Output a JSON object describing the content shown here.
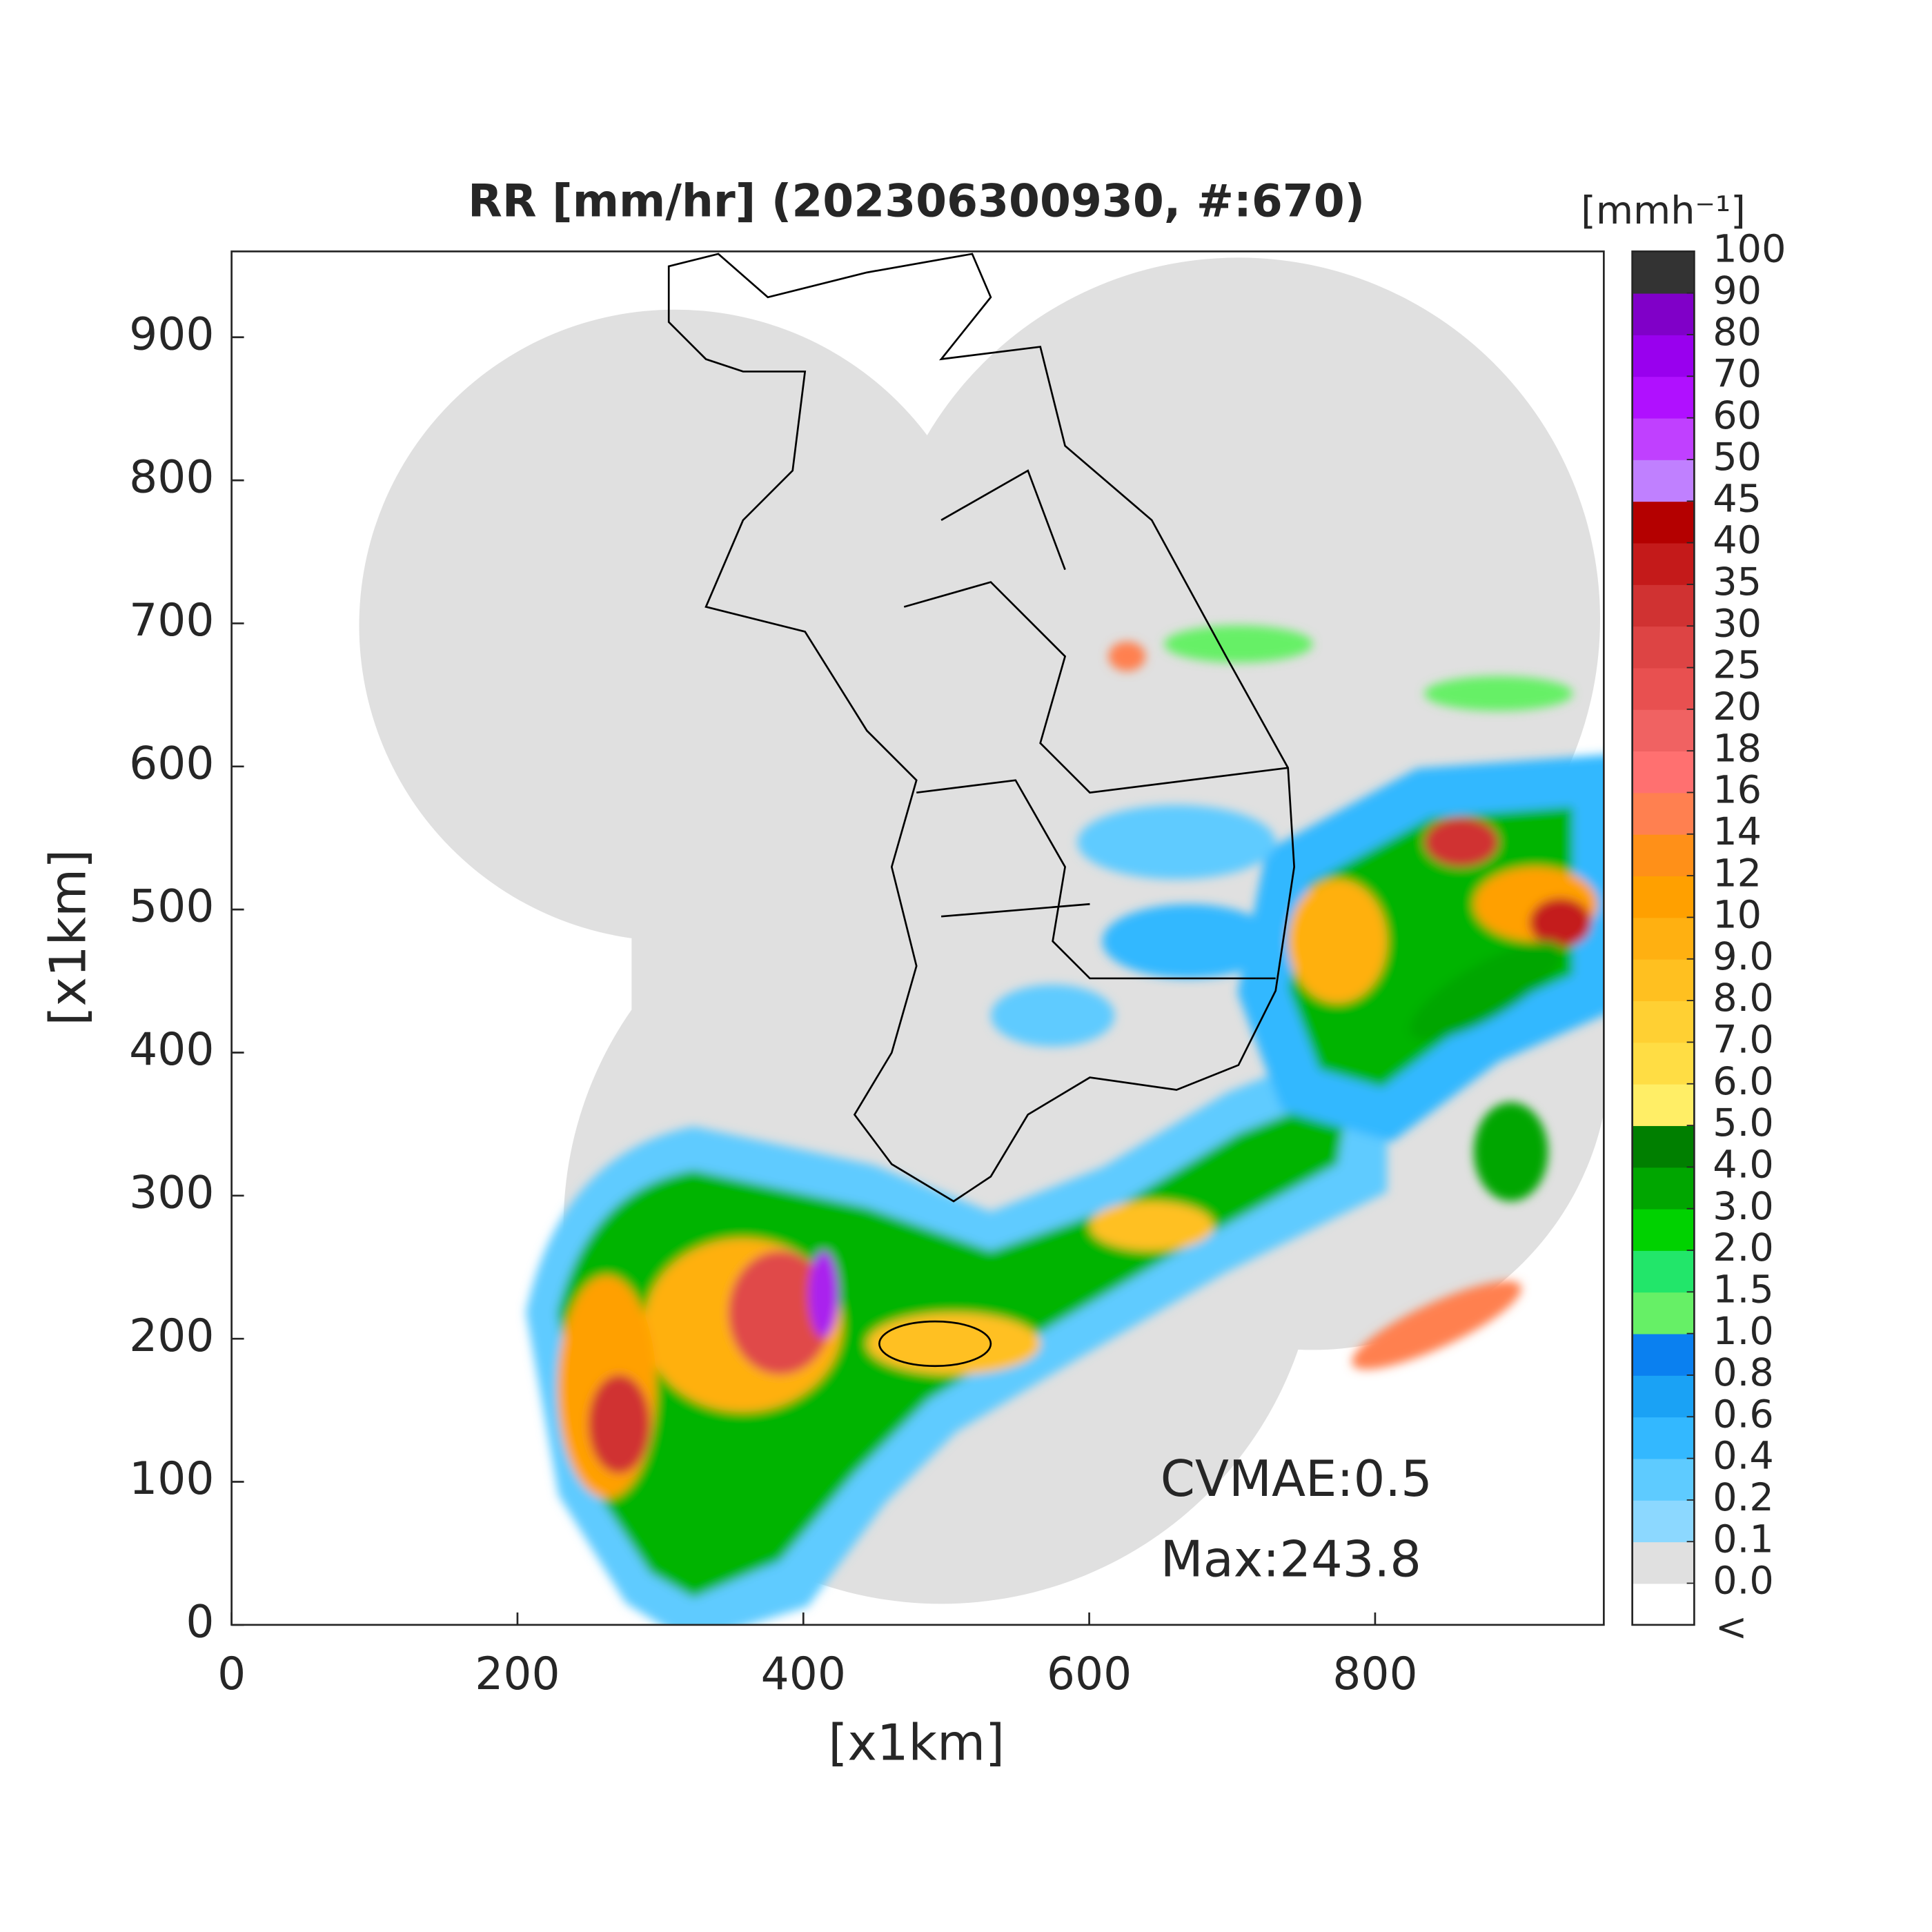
{
  "chart_data": {
    "type": "map",
    "title": "RR [mm/hr] (202306300930, #:670)",
    "x_label": "[x1km]",
    "y_label": "[x1km]",
    "xlim": [
      0,
      960
    ],
    "ylim": [
      0,
      960
    ],
    "xticks": [
      0,
      200,
      400,
      600,
      800
    ],
    "yticks": [
      0,
      100,
      200,
      300,
      400,
      500,
      600,
      700,
      800,
      900
    ],
    "annotations": [
      "CVMAE:0.5",
      "Max:243.8"
    ],
    "colorbar": {
      "label": "[mmh⁻¹]",
      "below_label": "<",
      "colors": [
        "#ffffff",
        "#e0e0e0",
        "#8cd8ff",
        "#5ecbff",
        "#33b8ff",
        "#1aa2f5",
        "#0a80f0",
        "#66f066",
        "#22e66a",
        "#00d200",
        "#00a600",
        "#007f00",
        "#ffee66",
        "#ffdd44",
        "#ffd033",
        "#ffc020",
        "#ffb011",
        "#ffa000",
        "#ff9018",
        "#ff8050",
        "#ff7070",
        "#f06262",
        "#e85050",
        "#dd4444",
        "#d03232",
        "#c41a1a",
        "#b40000",
        "#c080ff",
        "#c040ff",
        "#b010ff",
        "#9900ee",
        "#8000c8",
        "#333333"
      ],
      "ticks": [
        {
          "value": 0,
          "label": "0.0"
        },
        0.1,
        0.2,
        0.4,
        0.6,
        0.8,
        {
          "value": 1,
          "label": "1.0"
        },
        1.5,
        {
          "value": 2,
          "label": "2.0"
        },
        {
          "value": 3,
          "label": "3.0"
        },
        {
          "value": 4,
          "label": "4.0"
        },
        {
          "value": 5,
          "label": "5.0"
        },
        {
          "value": 6,
          "label": "6.0"
        },
        {
          "value": 7,
          "label": "7.0"
        },
        {
          "value": 8,
          "label": "8.0"
        },
        {
          "value": 9,
          "label": "9.0"
        },
        10,
        12,
        14,
        16,
        18,
        20,
        25,
        30,
        35,
        40,
        45,
        50,
        60,
        70,
        80,
        90,
        100
      ]
    }
  }
}
